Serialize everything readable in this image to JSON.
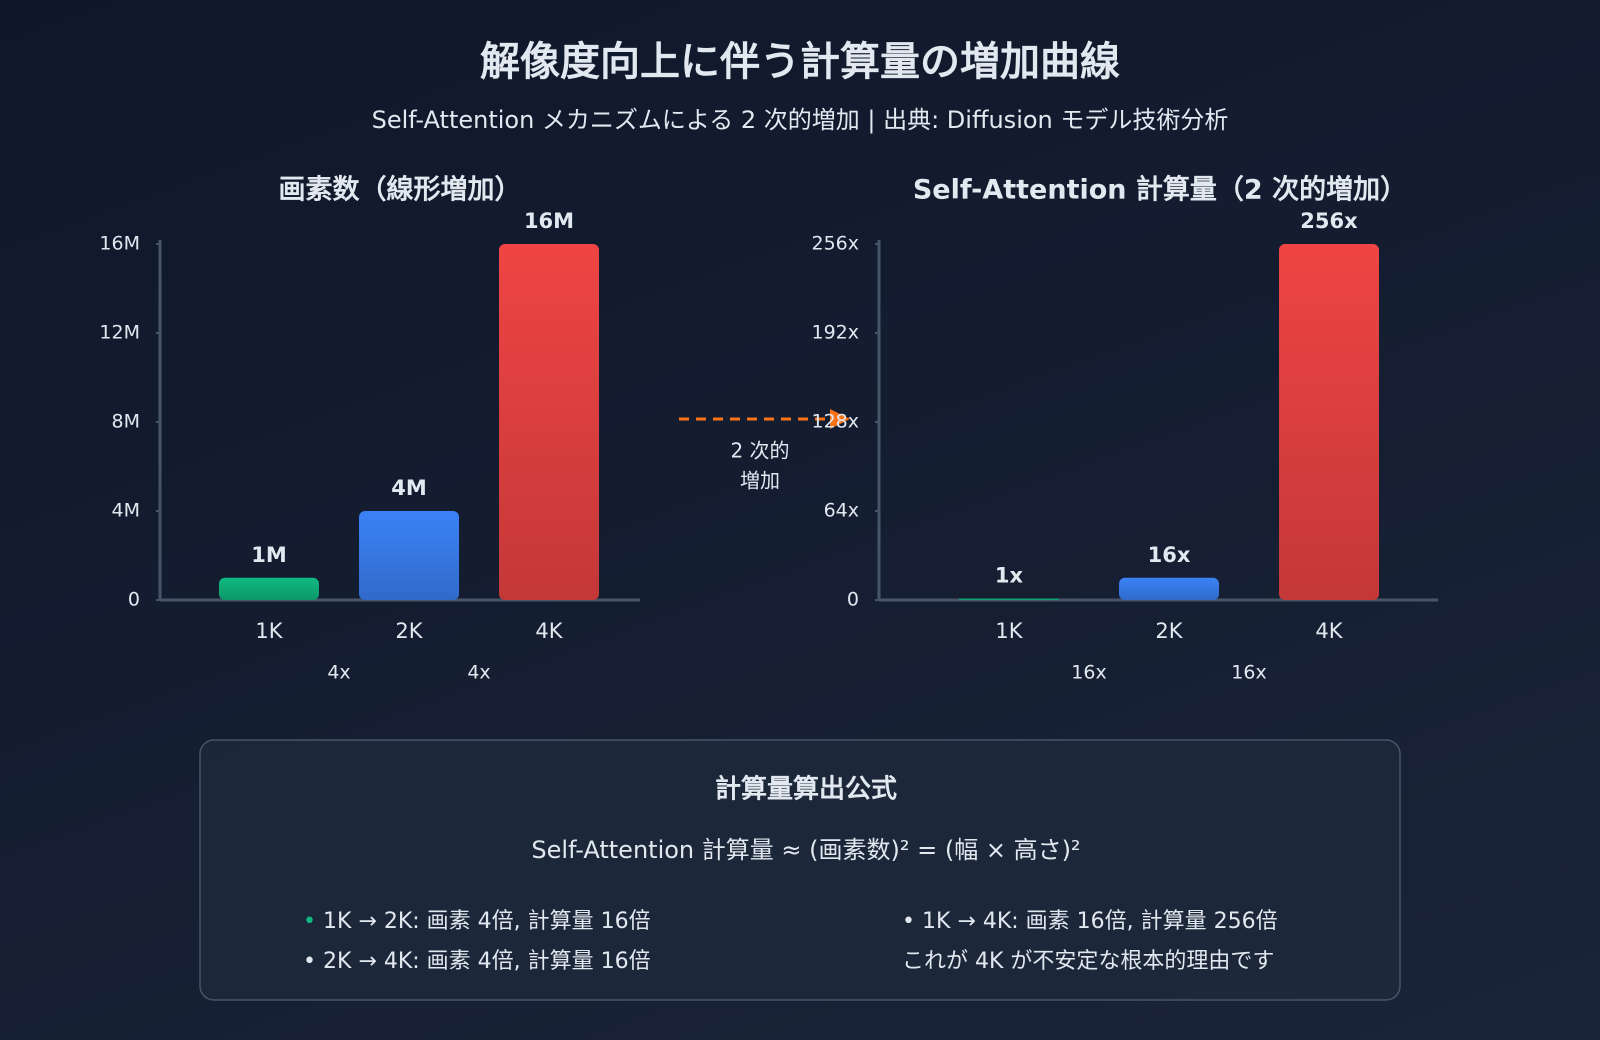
{
  "title": "解像度向上に伴う計算量の増加曲線",
  "subtitle": "Self-Attention メカニズムによる 2 次的増加 | 出典: Diffusion モデル技術分析",
  "chart_data": [
    {
      "type": "bar",
      "title": "画素数（線形増加）",
      "categories": [
        "1K",
        "2K",
        "4K"
      ],
      "values": [
        1,
        4,
        16
      ],
      "value_labels": [
        "1M",
        "4M",
        "16M"
      ],
      "colors": [
        "#10b981",
        "#3b82f6",
        "#ef4444"
      ],
      "ylim": [
        0,
        16
      ],
      "yticks": [
        0,
        {
          "value": 4,
          "label": "4M"
        },
        {
          "value": 8,
          "label": "8M"
        },
        {
          "value": 12,
          "label": "12M"
        },
        {
          "value": 16,
          "label": "16M"
        }
      ],
      "ratio_labels": [
        "4x",
        "4x"
      ],
      "ratio_color": "#94a3b8"
    },
    {
      "type": "bar",
      "title": "Self-Attention 計算量（2 次的増加）",
      "categories": [
        "1K",
        "2K",
        "4K"
      ],
      "values": [
        1,
        16,
        256
      ],
      "value_labels": [
        "1x",
        "16x",
        "256x"
      ],
      "colors": [
        "#10b981",
        "#3b82f6",
        "#ef4444"
      ],
      "ylim": [
        0,
        256
      ],
      "yticks": [
        0,
        {
          "value": 64,
          "label": "64x"
        },
        {
          "value": 128,
          "label": "128x"
        },
        {
          "value": 192,
          "label": "192x"
        },
        {
          "value": 256,
          "label": "256x"
        }
      ],
      "ratio_labels": [
        "16x",
        "16x"
      ],
      "ratio_color": "#f97316"
    }
  ],
  "arrow_label": [
    "2 次的",
    "増加"
  ],
  "formula_box": {
    "title": "計算量算出公式",
    "formula": "Self-Attention 計算量 ≈ (画素数)² = (幅 × 高さ)²",
    "left_notes": [
      "1K → 2K: 画素 4倍, 計算量 16倍",
      "2K → 4K: 画素 4倍, 計算量 16倍"
    ],
    "right_notes": [
      "1K → 4K: 画素 16倍, 計算量 256倍",
      "これが 4K が不安定な根本的理由です"
    ]
  }
}
